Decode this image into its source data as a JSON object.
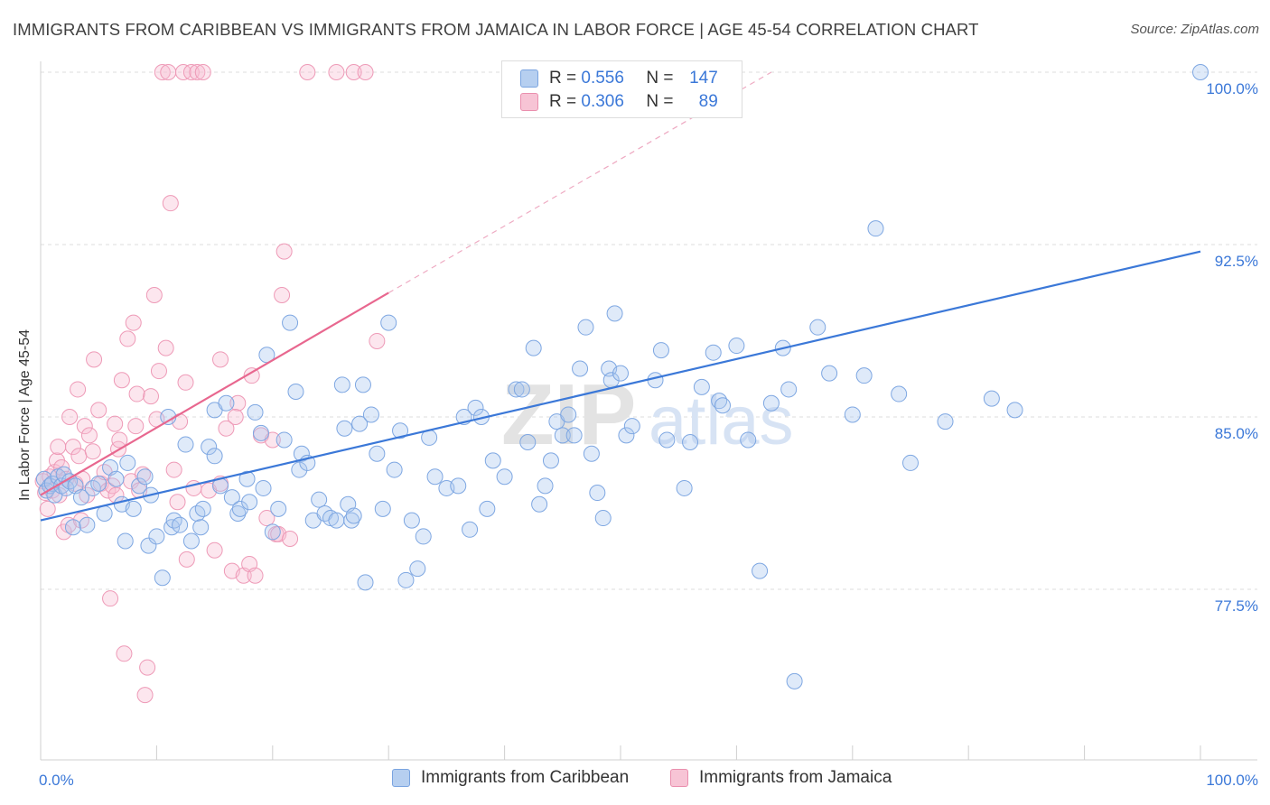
{
  "title": "IMMIGRANTS FROM CARIBBEAN VS IMMIGRANTS FROM JAMAICA IN LABOR FORCE | AGE 45-54 CORRELATION CHART",
  "source": "Source: ZipAtlas.com",
  "watermark": {
    "zip": "ZIP",
    "atlas": "atlas"
  },
  "legend": {
    "r_label": "R =",
    "n_label": "N =",
    "rows": [
      {
        "series": "Immigrants from Caribbean",
        "r": "0.556",
        "n": "147"
      },
      {
        "series": "Immigrants from Jamaica",
        "r": "0.306",
        "n": "89"
      }
    ]
  },
  "colors": {
    "blue": "#3b78d8",
    "blue_fill": "#b6cff0",
    "pink": "#e8678f",
    "pink_fill": "#f7c4d5",
    "tick_label": "#3b78d8"
  },
  "chart_data": {
    "type": "scatter",
    "ylabel": "In Labor Force | Age 45-54",
    "xlabel": "",
    "x_tick_labels": [
      "0.0%",
      "100.0%"
    ],
    "y_tick_labels": [
      "77.5%",
      "85.0%",
      "92.5%",
      "100.0%"
    ],
    "y_ticks": [
      77.5,
      85.0,
      92.5,
      100.0
    ],
    "xlim": [
      0,
      100
    ],
    "ylim": [
      71.0,
      101.0
    ],
    "grid": "horizontal dashed",
    "legend_placement": "top-center and bottom",
    "series": [
      {
        "name": "Immigrants from Caribbean",
        "color": "#3b78d8",
        "trend": {
          "x": [
            0,
            100
          ],
          "y": [
            80.5,
            92.2
          ],
          "style": "solid"
        },
        "points": [
          [
            0.3,
            82.3
          ],
          [
            0.5,
            81.8
          ],
          [
            0.8,
            82.0
          ],
          [
            1.0,
            82.1
          ],
          [
            1.2,
            81.6
          ],
          [
            1.5,
            82.4
          ],
          [
            1.8,
            82.0
          ],
          [
            2.0,
            82.5
          ],
          [
            2.2,
            81.9
          ],
          [
            2.5,
            82.2
          ],
          [
            2.8,
            80.2
          ],
          [
            3.0,
            82.0
          ],
          [
            3.5,
            81.5
          ],
          [
            4.0,
            80.3
          ],
          [
            4.5,
            81.9
          ],
          [
            5.0,
            82.1
          ],
          [
            5.5,
            80.8
          ],
          [
            6.0,
            82.8
          ],
          [
            6.5,
            82.3
          ],
          [
            7.0,
            81.2
          ],
          [
            7.3,
            79.6
          ],
          [
            7.5,
            83.0
          ],
          [
            8.0,
            81.0
          ],
          [
            8.5,
            82.0
          ],
          [
            9.0,
            82.4
          ],
          [
            9.3,
            79.4
          ],
          [
            9.5,
            81.6
          ],
          [
            10.0,
            79.8
          ],
          [
            10.5,
            78.0
          ],
          [
            11.0,
            85.0
          ],
          [
            11.3,
            80.2
          ],
          [
            11.5,
            80.5
          ],
          [
            12.0,
            80.3
          ],
          [
            12.5,
            83.8
          ],
          [
            13.0,
            79.6
          ],
          [
            13.5,
            80.8
          ],
          [
            13.8,
            80.2
          ],
          [
            14.0,
            81.0
          ],
          [
            14.5,
            83.7
          ],
          [
            15.0,
            83.3
          ],
          [
            15.5,
            82.0
          ],
          [
            15.0,
            85.3
          ],
          [
            16.0,
            85.6
          ],
          [
            16.5,
            81.5
          ],
          [
            17.0,
            80.8
          ],
          [
            17.2,
            81.0
          ],
          [
            17.8,
            82.3
          ],
          [
            18.0,
            81.3
          ],
          [
            18.5,
            85.2
          ],
          [
            19.0,
            84.3
          ],
          [
            19.2,
            81.9
          ],
          [
            19.5,
            87.7
          ],
          [
            20.0,
            80.0
          ],
          [
            20.5,
            81.0
          ],
          [
            21.0,
            84.0
          ],
          [
            21.5,
            89.1
          ],
          [
            22.0,
            86.1
          ],
          [
            22.3,
            82.7
          ],
          [
            22.5,
            83.4
          ],
          [
            23.0,
            83.0
          ],
          [
            23.5,
            80.5
          ],
          [
            24.0,
            81.4
          ],
          [
            24.5,
            80.8
          ],
          [
            25.0,
            80.6
          ],
          [
            25.5,
            80.5
          ],
          [
            26.0,
            86.4
          ],
          [
            26.2,
            84.5
          ],
          [
            26.5,
            81.2
          ],
          [
            26.8,
            80.5
          ],
          [
            27.0,
            80.7
          ],
          [
            27.5,
            84.7
          ],
          [
            27.8,
            86.4
          ],
          [
            28.0,
            77.8
          ],
          [
            28.5,
            85.1
          ],
          [
            29.0,
            83.4
          ],
          [
            29.5,
            81.0
          ],
          [
            30.0,
            89.1
          ],
          [
            30.5,
            82.7
          ],
          [
            31.0,
            84.4
          ],
          [
            31.5,
            77.9
          ],
          [
            32.0,
            80.5
          ],
          [
            32.5,
            78.4
          ],
          [
            33.0,
            79.8
          ],
          [
            33.5,
            84.1
          ],
          [
            34.0,
            82.4
          ],
          [
            35.0,
            81.9
          ],
          [
            36.0,
            82.0
          ],
          [
            36.5,
            85.0
          ],
          [
            37.0,
            80.1
          ],
          [
            37.5,
            85.4
          ],
          [
            38.0,
            85.0
          ],
          [
            38.5,
            81.0
          ],
          [
            39.0,
            83.1
          ],
          [
            40.0,
            82.4
          ],
          [
            41.0,
            86.2
          ],
          [
            41.5,
            86.2
          ],
          [
            42.0,
            83.9
          ],
          [
            42.5,
            88.0
          ],
          [
            43.0,
            81.2
          ],
          [
            43.5,
            82.0
          ],
          [
            44.0,
            83.1
          ],
          [
            44.5,
            84.8
          ],
          [
            45.0,
            84.2
          ],
          [
            45.5,
            85.1
          ],
          [
            46.0,
            84.2
          ],
          [
            46.5,
            87.1
          ],
          [
            47.0,
            88.9
          ],
          [
            47.5,
            83.4
          ],
          [
            48.0,
            81.7
          ],
          [
            48.5,
            80.6
          ],
          [
            49.0,
            87.1
          ],
          [
            49.2,
            86.6
          ],
          [
            49.5,
            89.5
          ],
          [
            50.0,
            86.9
          ],
          [
            50.5,
            84.2
          ],
          [
            51.0,
            84.6
          ],
          [
            53.0,
            86.6
          ],
          [
            53.5,
            87.9
          ],
          [
            54.0,
            84.0
          ],
          [
            55.5,
            81.9
          ],
          [
            56.0,
            83.9
          ],
          [
            57.0,
            86.3
          ],
          [
            58.0,
            87.8
          ],
          [
            58.5,
            85.7
          ],
          [
            58.8,
            85.5
          ],
          [
            60.0,
            88.1
          ],
          [
            61.0,
            84.0
          ],
          [
            62.0,
            78.3
          ],
          [
            63.0,
            85.6
          ],
          [
            64.0,
            88.0
          ],
          [
            64.5,
            86.2
          ],
          [
            65.0,
            73.5
          ],
          [
            67.0,
            88.9
          ],
          [
            68.0,
            86.9
          ],
          [
            70.0,
            85.1
          ],
          [
            71.0,
            86.8
          ],
          [
            72.0,
            93.2
          ],
          [
            74.0,
            86.0
          ],
          [
            75.0,
            83.0
          ],
          [
            78.0,
            84.8
          ],
          [
            82.0,
            85.8
          ],
          [
            84.0,
            85.3
          ],
          [
            100.0,
            100.0
          ]
        ]
      },
      {
        "name": "Immigrants from Jamaica",
        "color": "#e8678f",
        "trend": {
          "x": [
            0,
            30
          ],
          "y": [
            81.6,
            90.4
          ],
          "style": "solid",
          "extension": {
            "x": [
              30,
              63
            ],
            "y": [
              90.4,
              100.0
            ],
            "style": "dashed"
          }
        },
        "points": [
          [
            0.2,
            82.2
          ],
          [
            0.4,
            81.7
          ],
          [
            0.6,
            81.0
          ],
          [
            0.8,
            82.4
          ],
          [
            1.0,
            81.8
          ],
          [
            1.2,
            82.6
          ],
          [
            1.4,
            83.1
          ],
          [
            1.5,
            83.7
          ],
          [
            1.6,
            81.6
          ],
          [
            1.8,
            82.8
          ],
          [
            2.0,
            80.0
          ],
          [
            2.2,
            82.3
          ],
          [
            2.4,
            80.3
          ],
          [
            2.5,
            85.0
          ],
          [
            2.8,
            83.7
          ],
          [
            3.0,
            82.1
          ],
          [
            3.2,
            86.2
          ],
          [
            3.3,
            83.3
          ],
          [
            3.5,
            80.5
          ],
          [
            3.6,
            82.3
          ],
          [
            3.8,
            84.6
          ],
          [
            4.0,
            81.6
          ],
          [
            4.2,
            84.2
          ],
          [
            4.5,
            83.5
          ],
          [
            4.6,
            87.5
          ],
          [
            5.0,
            85.3
          ],
          [
            5.2,
            82.1
          ],
          [
            5.5,
            82.6
          ],
          [
            5.8,
            81.8
          ],
          [
            6.0,
            77.1
          ],
          [
            6.2,
            82.0
          ],
          [
            6.4,
            84.7
          ],
          [
            6.5,
            81.6
          ],
          [
            6.7,
            83.6
          ],
          [
            6.8,
            84.0
          ],
          [
            7.0,
            86.6
          ],
          [
            7.2,
            74.7
          ],
          [
            7.5,
            88.4
          ],
          [
            7.8,
            82.2
          ],
          [
            8.0,
            89.1
          ],
          [
            8.2,
            84.6
          ],
          [
            8.5,
            81.8
          ],
          [
            8.8,
            82.5
          ],
          [
            9.0,
            72.9
          ],
          [
            9.2,
            74.1
          ],
          [
            9.5,
            85.9
          ],
          [
            9.8,
            90.3
          ],
          [
            10.0,
            84.9
          ],
          [
            10.2,
            87.0
          ],
          [
            10.5,
            100.0
          ],
          [
            10.8,
            88.0
          ],
          [
            11.0,
            100.0
          ],
          [
            11.2,
            94.3
          ],
          [
            11.5,
            82.7
          ],
          [
            11.8,
            81.3
          ],
          [
            12.0,
            84.8
          ],
          [
            12.3,
            100.0
          ],
          [
            12.6,
            78.8
          ],
          [
            13.0,
            100.0
          ],
          [
            13.2,
            81.9
          ],
          [
            13.5,
            100.0
          ],
          [
            14.0,
            100.0
          ],
          [
            14.5,
            81.8
          ],
          [
            15.0,
            79.2
          ],
          [
            15.5,
            82.1
          ],
          [
            16.0,
            84.5
          ],
          [
            16.5,
            78.3
          ],
          [
            17.0,
            85.6
          ],
          [
            17.5,
            78.1
          ],
          [
            18.0,
            78.6
          ],
          [
            18.2,
            86.8
          ],
          [
            18.5,
            78.1
          ],
          [
            19.0,
            84.2
          ],
          [
            19.5,
            80.6
          ],
          [
            20.0,
            84.0
          ],
          [
            20.3,
            79.9
          ],
          [
            20.5,
            79.9
          ],
          [
            20.8,
            90.3
          ],
          [
            21.0,
            92.2
          ],
          [
            21.5,
            79.7
          ],
          [
            23.0,
            100.0
          ],
          [
            25.5,
            100.0
          ],
          [
            27.0,
            100.0
          ],
          [
            28.0,
            100.0
          ],
          [
            29.0,
            88.3
          ],
          [
            15.5,
            87.5
          ],
          [
            16.8,
            85.0
          ],
          [
            12.5,
            86.5
          ],
          [
            8.3,
            86.0
          ]
        ]
      }
    ]
  }
}
